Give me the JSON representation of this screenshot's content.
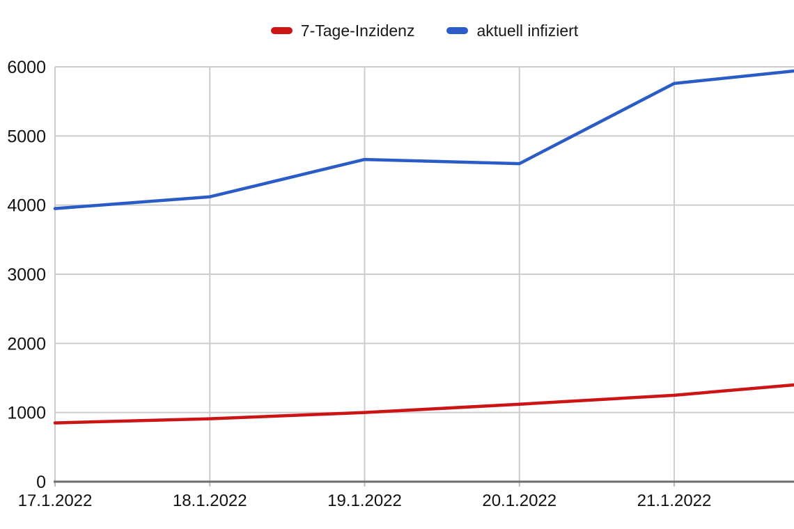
{
  "chart_data": {
    "type": "line",
    "title": "",
    "xlabel": "",
    "ylabel": "",
    "categories": [
      "17.1.2022",
      "18.1.2022",
      "19.1.2022",
      "20.1.2022",
      "21.1.2022"
    ],
    "series": [
      {
        "name": "7-Tage-Inzidenz",
        "color": "#cc1414",
        "values": [
          850,
          910,
          1000,
          1120,
          1250
        ],
        "clipped_edge_value": 1400
      },
      {
        "name": "aktuell infiziert",
        "color": "#2a5cc8",
        "values": [
          3950,
          4120,
          4660,
          4600,
          5760
        ],
        "clipped_edge_value": 5940
      }
    ],
    "ylim": [
      0,
      6000
    ],
    "yticks": [
      0,
      1000,
      2000,
      3000,
      4000,
      5000,
      6000
    ],
    "grid": true,
    "legend_position": "top",
    "clipped_note": "both lines continue past the clipped right edge of the image"
  },
  "style_colors": {
    "gridline": "#cccccc",
    "x_axis_line": "#6e6e6e",
    "tick": "#bbbbbb",
    "label_text": "#111111",
    "background": "#ffffff"
  }
}
